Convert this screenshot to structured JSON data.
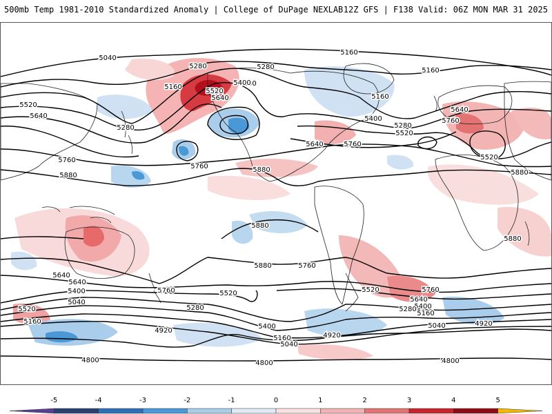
{
  "header": {
    "title": "500mb Temp 1981-2010 Standardized Anomaly | College of DuPage NEXLAB",
    "run_info": "12Z GFS | F138 Valid: 06Z MON MAR 31 2025"
  },
  "map": {
    "contour_labels": [
      {
        "text": "5040"
      },
      {
        "text": "5160"
      },
      {
        "text": "5280"
      },
      {
        "text": "5400"
      },
      {
        "text": "5520"
      },
      {
        "text": "5640"
      },
      {
        "text": "5160"
      },
      {
        "text": "5280"
      },
      {
        "text": "5520"
      },
      {
        "text": "5640"
      },
      {
        "text": "5280"
      },
      {
        "text": "5400"
      },
      {
        "text": "5160"
      },
      {
        "text": "5400"
      },
      {
        "text": "5160"
      },
      {
        "text": "5280"
      },
      {
        "text": "5520"
      },
      {
        "text": "5640"
      },
      {
        "text": "5760"
      },
      {
        "text": "5640"
      },
      {
        "text": "5760"
      },
      {
        "text": "5520"
      },
      {
        "text": "5880"
      },
      {
        "text": "5760"
      },
      {
        "text": "5880"
      },
      {
        "text": "5760"
      },
      {
        "text": "5880"
      },
      {
        "text": "5880"
      },
      {
        "text": "5880"
      },
      {
        "text": "5880"
      },
      {
        "text": "5760"
      },
      {
        "text": "5760"
      },
      {
        "text": "5760"
      },
      {
        "text": "5640"
      },
      {
        "text": "5400"
      },
      {
        "text": "5040"
      },
      {
        "text": "5520"
      },
      {
        "text": "5160"
      },
      {
        "text": "5520"
      },
      {
        "text": "5280"
      },
      {
        "text": "5640"
      },
      {
        "text": "5520"
      },
      {
        "text": "5400"
      },
      {
        "text": "4920"
      },
      {
        "text": "5160"
      },
      {
        "text": "5040"
      },
      {
        "text": "4920"
      },
      {
        "text": "4800"
      },
      {
        "text": "4800"
      },
      {
        "text": "5760"
      },
      {
        "text": "5640"
      },
      {
        "text": "5400"
      },
      {
        "text": "5280"
      },
      {
        "text": "5160"
      },
      {
        "text": "5040"
      },
      {
        "text": "4920"
      },
      {
        "text": "4800"
      }
    ]
  },
  "colorbar": {
    "ticks": [
      "-5",
      "-4",
      "-3",
      "-2",
      "-1",
      "0",
      "1",
      "2",
      "3",
      "4",
      "5"
    ],
    "colors": [
      "#5a3e8f",
      "#27406f",
      "#2f6fb5",
      "#4a98d6",
      "#a9cdea",
      "#dfeaf5",
      "#f9e1e1",
      "#f1b3b3",
      "#e37272",
      "#c8252e",
      "#8e0a14",
      "#f5b800"
    ]
  }
}
